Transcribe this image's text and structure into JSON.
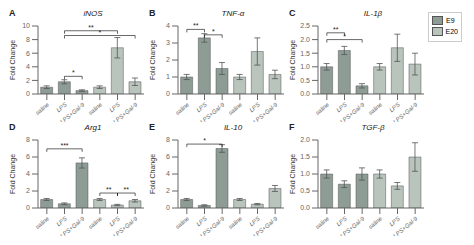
{
  "chart_data": [
    {
      "type": "bar",
      "panel_label": "A",
      "title": "iNOS",
      "y_label": "Fold Change",
      "categories": [
        "saline",
        "LPS",
        "LPS+Gal-9",
        "saline",
        "LPS",
        "LPS+Gal-9"
      ],
      "series": [
        {
          "name": "E9",
          "color": "#8d9d96",
          "values": [
            1.0,
            1.8,
            0.5,
            null,
            null,
            null
          ],
          "errors": [
            0.2,
            0.3,
            0.12,
            null,
            null,
            null
          ]
        },
        {
          "name": "E20",
          "color": "#b8c4bc",
          "values": [
            null,
            null,
            null,
            1.0,
            6.8,
            1.8
          ],
          "errors": [
            null,
            null,
            null,
            0.2,
            1.5,
            0.55
          ]
        }
      ],
      "ylim": [
        0,
        10
      ],
      "yticks": [
        0,
        2,
        4,
        6,
        8,
        10
      ],
      "grid": false,
      "annotations": [
        {
          "text": "**",
          "x": [
            1,
            4
          ],
          "y": 9.3
        },
        {
          "text": "*",
          "x": [
            1,
            5
          ],
          "y": 8.6
        },
        {
          "text": "*",
          "x": [
            1,
            2
          ],
          "y": 2.6
        }
      ]
    },
    {
      "type": "bar",
      "panel_label": "B",
      "title": "TNF-α",
      "y_label": "Fold Change",
      "categories": [
        "saline",
        "LPS",
        "LPS+Gal-9",
        "saline",
        "LPS",
        "LPS+Gal-9"
      ],
      "series": [
        {
          "name": "E9",
          "color": "#8d9d96",
          "values": [
            1.0,
            3.3,
            1.5,
            null,
            null,
            null
          ],
          "errors": [
            0.15,
            0.25,
            0.35,
            null,
            null,
            null
          ]
        },
        {
          "name": "E20",
          "color": "#b8c4bc",
          "values": [
            null,
            null,
            null,
            1.0,
            2.5,
            1.15
          ],
          "errors": [
            null,
            null,
            null,
            0.15,
            0.8,
            0.25
          ]
        }
      ],
      "ylim": [
        0,
        4
      ],
      "yticks": [
        0,
        1,
        2,
        3,
        4
      ],
      "grid": false,
      "annotations": [
        {
          "text": "**",
          "x": [
            0,
            1
          ],
          "y": 3.8
        },
        {
          "text": "*",
          "x": [
            1,
            2
          ],
          "y": 3.48
        }
      ]
    },
    {
      "type": "bar",
      "panel_label": "C",
      "title": "IL-1β",
      "y_label": "Fold Change",
      "categories": [
        "saline",
        "LPS",
        "LPS+Gal-9",
        "saline",
        "LPS",
        "LPS+Gal-9"
      ],
      "series": [
        {
          "name": "E9",
          "color": "#8d9d96",
          "values": [
            1.0,
            1.6,
            0.3,
            null,
            null,
            null
          ],
          "errors": [
            0.12,
            0.15,
            0.08,
            null,
            null,
            null
          ]
        },
        {
          "name": "E20",
          "color": "#b8c4bc",
          "values": [
            null,
            null,
            null,
            1.0,
            1.7,
            1.1
          ],
          "errors": [
            null,
            null,
            null,
            0.12,
            0.5,
            0.4
          ]
        }
      ],
      "ylim": [
        0,
        2.5
      ],
      "yticks": [
        {
          "value": 0,
          "label": "0.0"
        },
        0.5,
        {
          "value": 1,
          "label": "1.0"
        },
        1.5,
        {
          "value": 2,
          "label": "2.0"
        },
        2.5
      ],
      "grid": false,
      "legend": "right",
      "annotations": [
        {
          "text": "**",
          "x": [
            0,
            1
          ],
          "y": 2.25
        },
        {
          "text": "*",
          "x": [
            0,
            2
          ],
          "y": 2.0
        }
      ]
    },
    {
      "type": "bar",
      "panel_label": "D",
      "title": "Arg1",
      "y_label": "Fold Change",
      "categories": [
        "saline",
        "LPS",
        "LPS+Gal-9",
        "saline",
        "LPS",
        "LPS+Gal-9"
      ],
      "series": [
        {
          "name": "E9",
          "color": "#8d9d96",
          "values": [
            1.0,
            0.5,
            5.3,
            null,
            null,
            null
          ],
          "errors": [
            0.12,
            0.1,
            0.6,
            null,
            null,
            null
          ]
        },
        {
          "name": "E20",
          "color": "#b8c4bc",
          "values": [
            null,
            null,
            null,
            1.0,
            0.35,
            0.85
          ],
          "errors": [
            null,
            null,
            null,
            0.12,
            0.08,
            0.15
          ]
        }
      ],
      "ylim": [
        0,
        8
      ],
      "yticks": [
        0,
        2,
        4,
        6,
        8
      ],
      "grid": false,
      "annotations": [
        {
          "text": "***",
          "x": [
            0,
            2
          ],
          "y": 6.96
        },
        {
          "text": "**",
          "x": [
            3,
            4
          ],
          "y": 1.76
        },
        {
          "text": "**",
          "x": [
            4,
            5
          ],
          "y": 1.76
        }
      ]
    },
    {
      "type": "bar",
      "panel_label": "E",
      "title": "IL-10",
      "y_label": "Fold Change",
      "categories": [
        "saline",
        "LPS",
        "LPS+Gal-9",
        "saline",
        "LPS",
        "LPS+Gal-9"
      ],
      "series": [
        {
          "name": "E9",
          "color": "#8d9d96",
          "values": [
            1.0,
            0.3,
            7.0,
            null,
            null,
            null
          ],
          "errors": [
            0.12,
            0.08,
            0.45,
            null,
            null,
            null
          ]
        },
        {
          "name": "E20",
          "color": "#b8c4bc",
          "values": [
            null,
            null,
            null,
            1.0,
            0.45,
            2.3
          ],
          "errors": [
            null,
            null,
            null,
            0.12,
            0.08,
            0.35
          ]
        }
      ],
      "ylim": [
        0,
        8
      ],
      "yticks": [
        0,
        2,
        4,
        6,
        8
      ],
      "grid": false,
      "annotations": [
        {
          "text": "*",
          "x": [
            0,
            2
          ],
          "y": 7.52
        }
      ]
    },
    {
      "type": "bar",
      "panel_label": "F",
      "title": "TGF-β",
      "y_label": "Fold Change",
      "categories": [
        "saline",
        "LPS",
        "LPS+Gal-9",
        "saline",
        "LPS",
        "LPS+Gal-9"
      ],
      "series": [
        {
          "name": "E9",
          "color": "#8d9d96",
          "values": [
            1.0,
            0.7,
            1.0,
            null,
            null,
            null
          ],
          "errors": [
            0.12,
            0.1,
            0.18,
            null,
            null,
            null
          ]
        },
        {
          "name": "E20",
          "color": "#b8c4bc",
          "values": [
            null,
            null,
            null,
            1.0,
            0.65,
            1.5
          ],
          "errors": [
            null,
            null,
            null,
            0.12,
            0.1,
            0.42
          ]
        }
      ],
      "ylim": [
        0,
        2.0
      ],
      "yticks": [
        {
          "value": 0,
          "label": "0.0"
        },
        0.5,
        {
          "value": 1,
          "label": "1.0"
        },
        1.5,
        {
          "value": 2,
          "label": "2.0"
        }
      ],
      "grid": false,
      "annotations": []
    }
  ]
}
